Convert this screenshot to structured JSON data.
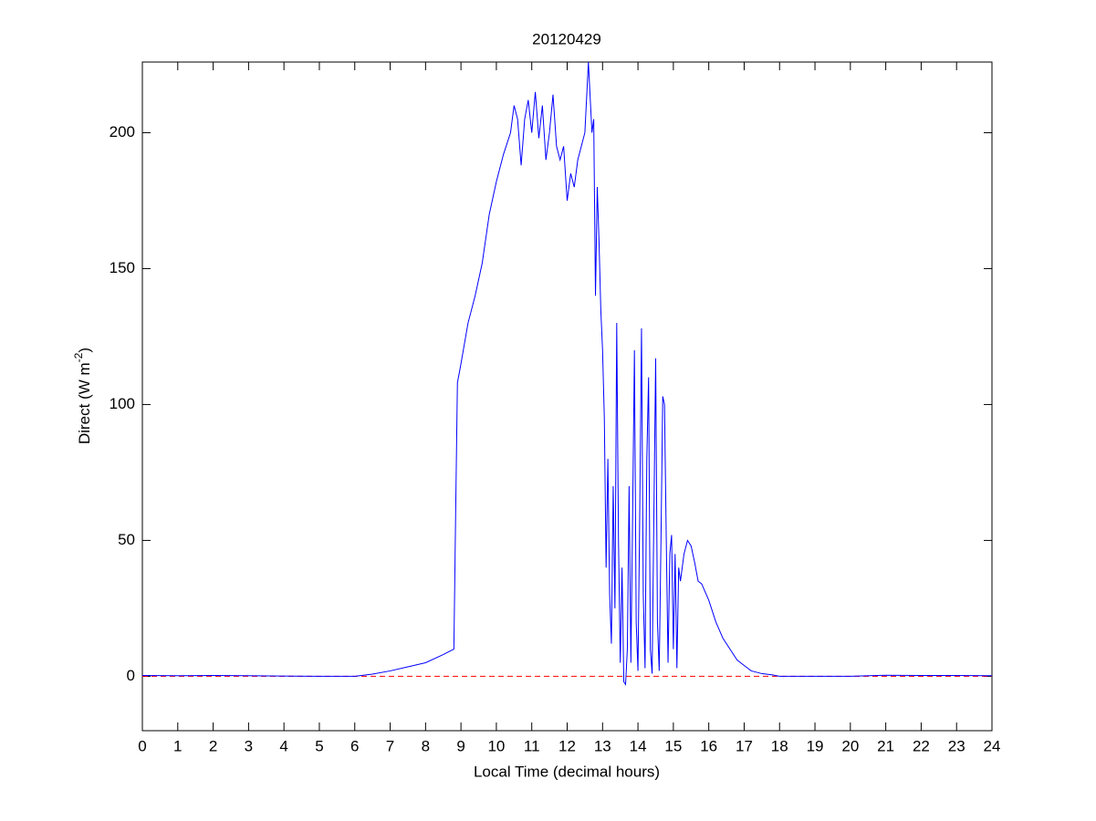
{
  "chart_data": {
    "type": "line",
    "title": "20120429",
    "xlabel": "Local Time (decimal hours)",
    "ylabel": {
      "text": "Direct (W m",
      "superscript": "-2",
      "suffix": ")"
    },
    "xlim": [
      0,
      24
    ],
    "ylim": [
      -20,
      226
    ],
    "xticks": [
      0,
      1,
      2,
      3,
      4,
      5,
      6,
      7,
      8,
      9,
      10,
      11,
      12,
      13,
      14,
      15,
      16,
      17,
      18,
      19,
      20,
      21,
      22,
      23,
      24
    ],
    "yticks": [
      0,
      50,
      100,
      150,
      200
    ],
    "reference_line": {
      "value": 0,
      "color": "#ff0000",
      "style": "dashed"
    },
    "series": [
      {
        "color": "#0000ff",
        "x": [
          0,
          1,
          2,
          3,
          4,
          5,
          6,
          6.5,
          7,
          7.5,
          8,
          8.5,
          8.8,
          8.85,
          8.9,
          9.0,
          9.2,
          9.4,
          9.6,
          9.8,
          10.0,
          10.2,
          10.4,
          10.5,
          10.6,
          10.7,
          10.8,
          10.9,
          11.0,
          11.1,
          11.2,
          11.3,
          11.4,
          11.5,
          11.6,
          11.7,
          11.8,
          11.9,
          12.0,
          12.1,
          12.2,
          12.3,
          12.4,
          12.5,
          12.6,
          12.7,
          12.75,
          12.8,
          12.85,
          12.9,
          12.95,
          13.0,
          13.05,
          13.1,
          13.15,
          13.2,
          13.25,
          13.3,
          13.35,
          13.4,
          13.45,
          13.5,
          13.55,
          13.6,
          13.65,
          13.7,
          13.75,
          13.8,
          13.85,
          13.9,
          13.95,
          14.0,
          14.05,
          14.1,
          14.15,
          14.2,
          14.25,
          14.3,
          14.35,
          14.4,
          14.45,
          14.5,
          14.55,
          14.6,
          14.65,
          14.7,
          14.75,
          14.8,
          14.85,
          14.9,
          14.95,
          15.0,
          15.05,
          15.1,
          15.15,
          15.2,
          15.3,
          15.4,
          15.5,
          15.6,
          15.7,
          15.8,
          16.0,
          16.2,
          16.4,
          16.6,
          16.8,
          17.0,
          17.2,
          17.5,
          17.8,
          18.0,
          19,
          20,
          20.5,
          21,
          22,
          23,
          24
        ],
        "values": [
          0.3,
          0.2,
          0.3,
          0.2,
          0.1,
          0,
          0,
          0.8,
          2,
          3.5,
          5,
          8,
          10,
          60,
          108,
          115,
          130,
          140,
          152,
          170,
          182,
          192,
          200,
          210,
          205,
          188,
          205,
          212,
          200,
          215,
          198,
          210,
          190,
          200,
          214,
          195,
          190,
          195,
          175,
          185,
          180,
          190,
          195,
          200,
          226,
          200,
          205,
          140,
          180,
          160,
          135,
          120,
          95,
          40,
          80,
          30,
          12,
          70,
          25,
          130,
          50,
          5,
          40,
          -2,
          -3,
          10,
          70,
          5,
          60,
          120,
          20,
          2,
          60,
          128,
          30,
          3,
          80,
          110,
          10,
          1,
          60,
          117,
          20,
          2,
          50,
          103,
          100,
          50,
          5,
          45,
          52,
          10,
          45,
          3,
          40,
          35,
          45,
          50,
          48,
          42,
          35,
          34,
          28,
          20,
          14,
          10,
          6,
          4,
          2,
          1,
          0.5,
          0,
          0,
          0,
          0.2,
          0.4,
          0.3,
          0.3,
          0.2
        ]
      }
    ]
  }
}
